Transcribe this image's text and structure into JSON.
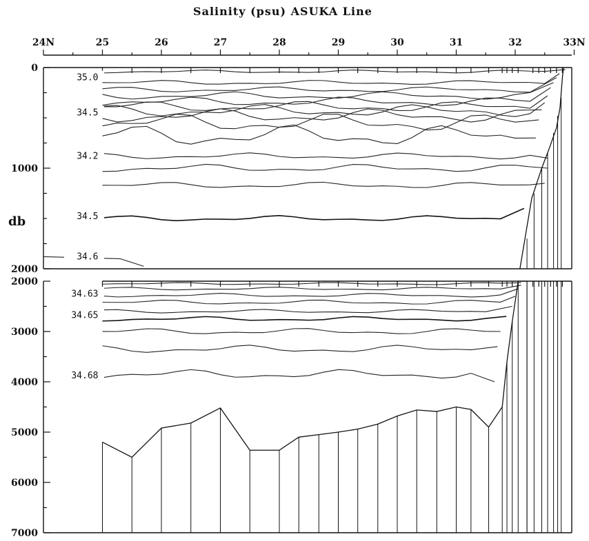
{
  "chart_data": {
    "type": "contour-section",
    "title": "Salinity (psu)  ASUKA Line",
    "ylabel": "db",
    "x_tick_labels": [
      "24N",
      "25",
      "26",
      "27",
      "28",
      "29",
      "30",
      "31",
      "32",
      "33N"
    ],
    "x_range": [
      24,
      33
    ],
    "y_range": [
      0,
      7000
    ],
    "y_break": 2000,
    "upper_panel": {
      "depth_range": [
        0,
        2000
      ],
      "y_tick_labels": [
        "0",
        "1000",
        "2000"
      ],
      "contour_labels": [
        {
          "text": "35.0",
          "depth": 100
        },
        {
          "text": "34.5",
          "depth": 450
        },
        {
          "text": "34.2",
          "depth": 880
        },
        {
          "text": "34.5",
          "depth": 1480
        },
        {
          "text": "34.6",
          "depth": 1880
        }
      ]
    },
    "lower_panel": {
      "depth_range": [
        2000,
        7000
      ],
      "y_tick_labels": [
        "2000",
        "3000",
        "4000",
        "5000",
        "6000",
        "7000"
      ],
      "contour_labels": [
        {
          "text": "34.63",
          "depth": 2250
        },
        {
          "text": "34.65",
          "depth": 2680
        },
        {
          "text": "34.68",
          "depth": 3880
        }
      ]
    },
    "bottom_profile": {
      "latitude": [
        25.0,
        25.5,
        26.0,
        26.5,
        27.0,
        27.5,
        28.0,
        28.33,
        28.67,
        29.0,
        29.33,
        29.67,
        30.0,
        30.33,
        30.67,
        31.0,
        31.25,
        31.55,
        31.78,
        31.86,
        31.95,
        32.05,
        32.2
      ],
      "depth": [
        5200,
        5500,
        4920,
        4820,
        4520,
        5360,
        5360,
        5100,
        5050,
        5000,
        4940,
        4840,
        4680,
        4560,
        4590,
        4500,
        4550,
        4900,
        4500,
        3600,
        2800,
        2000,
        2000
      ]
    }
  }
}
